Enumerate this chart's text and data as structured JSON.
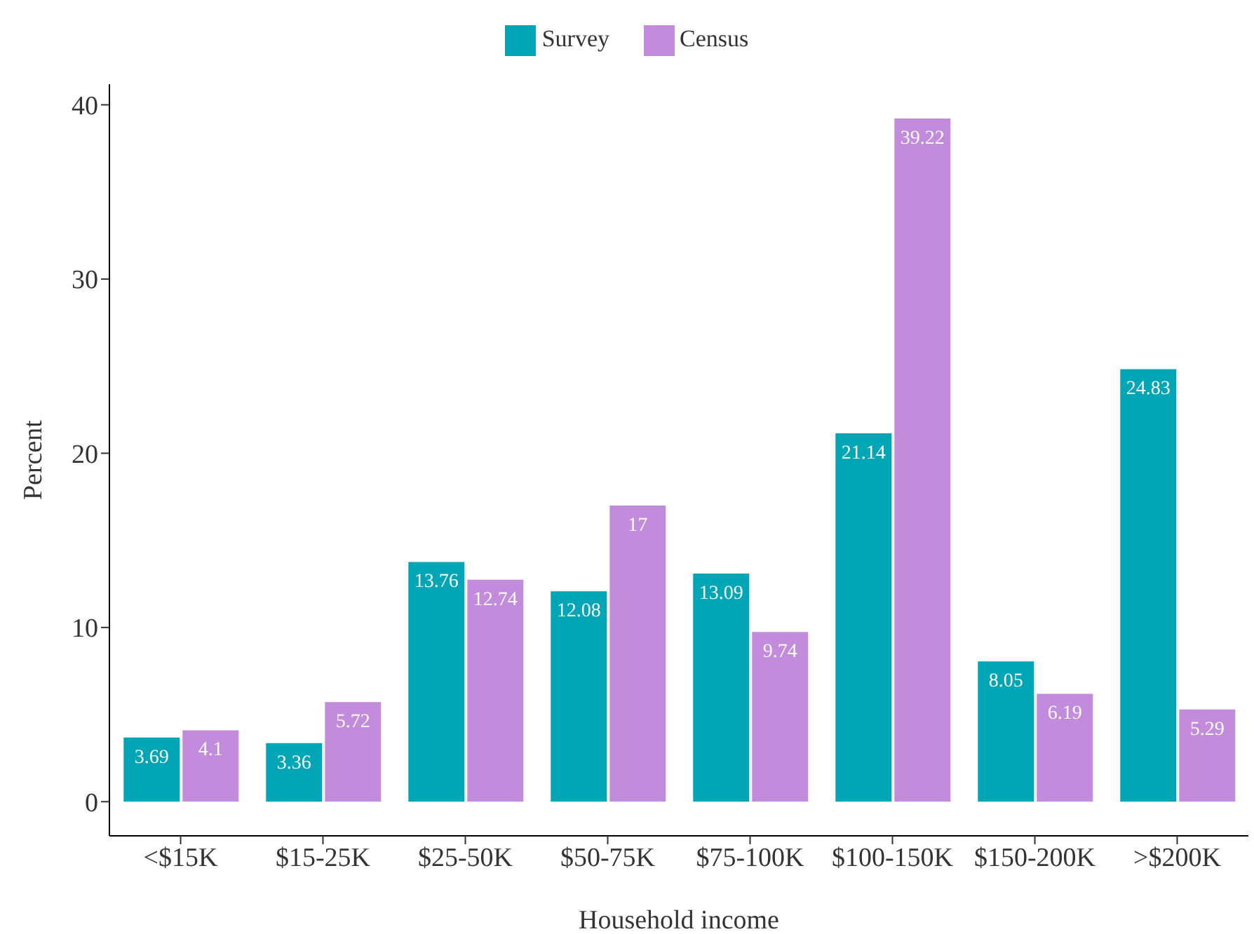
{
  "chart_data": {
    "type": "bar",
    "xlabel": "Household income",
    "ylabel": "Percent",
    "categories": [
      "<$15K",
      "$15-25K",
      "$25-50K",
      "$50-75K",
      "$75-100K",
      "$100-150K",
      "$150-200K",
      ">$200K"
    ],
    "series": [
      {
        "name": "Survey",
        "color": "#00a6b5",
        "values": [
          3.69,
          3.36,
          13.76,
          12.08,
          13.09,
          21.14,
          8.05,
          24.83
        ]
      },
      {
        "name": "Census",
        "color": "#c38bdb",
        "values": [
          4.1,
          5.72,
          12.74,
          17,
          9.74,
          39.22,
          6.19,
          5.29
        ]
      }
    ],
    "ylim": [
      -1.96,
      41.18
    ],
    "yticks": [
      0,
      10,
      20,
      30,
      40
    ],
    "grid": false,
    "legend": "top",
    "data_labels": true
  }
}
